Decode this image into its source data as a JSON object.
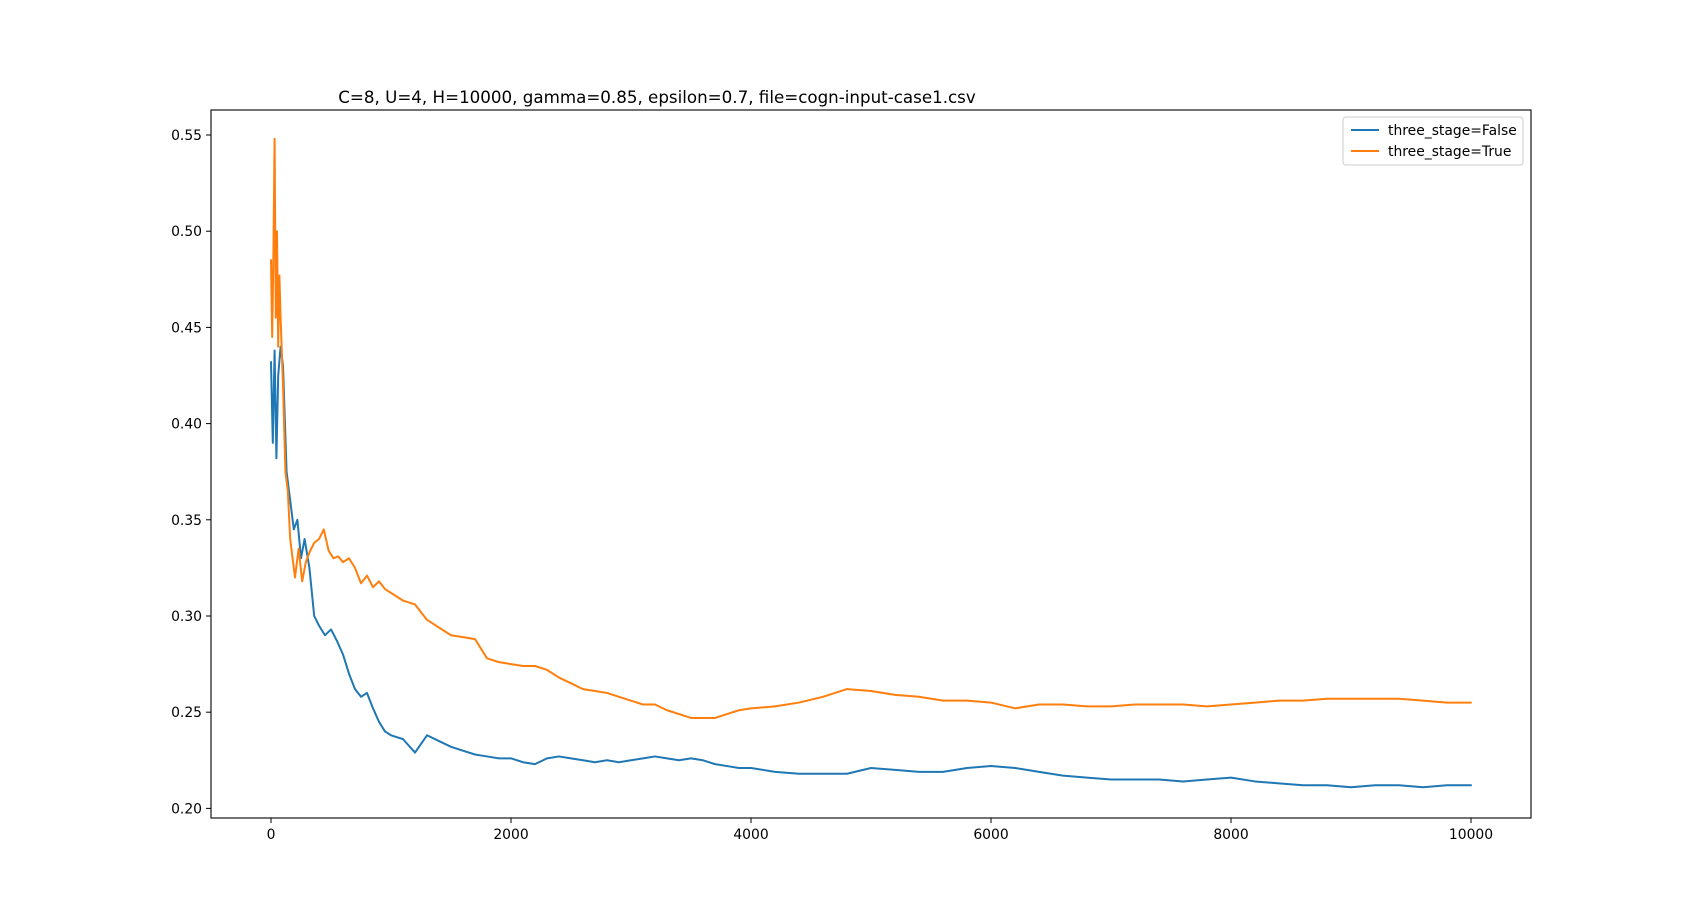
{
  "chart_data": {
    "type": "line",
    "title": "C=8, U=4, H=10000, gamma=0.85, epsilon=0.7, file=cogn-input-case1.csv",
    "xlabel": "",
    "ylabel": "",
    "xlim": [
      -500,
      10500
    ],
    "ylim": [
      0.195,
      0.563
    ],
    "xticks": [
      0,
      2000,
      4000,
      6000,
      8000,
      10000
    ],
    "xtick_labels": [
      "0",
      "2000",
      "4000",
      "6000",
      "8000",
      "10000"
    ],
    "yticks": [
      0.2,
      0.25,
      0.3,
      0.35,
      0.4,
      0.45,
      0.5,
      0.55
    ],
    "ytick_labels": [
      "0.20",
      "0.25",
      "0.30",
      "0.35",
      "0.40",
      "0.45",
      "0.50",
      "0.55"
    ],
    "grid": false,
    "legend_position": "top-right",
    "series": [
      {
        "name": "three_stage=False",
        "color": "#1f77b4",
        "x": [
          0,
          15,
          30,
          45,
          60,
          80,
          100,
          130,
          160,
          190,
          220,
          250,
          280,
          320,
          360,
          400,
          450,
          500,
          550,
          600,
          650,
          700,
          750,
          800,
          850,
          900,
          950,
          1000,
          1100,
          1200,
          1300,
          1400,
          1500,
          1600,
          1700,
          1800,
          1900,
          2000,
          2100,
          2200,
          2300,
          2400,
          2500,
          2600,
          2700,
          2800,
          2900,
          3000,
          3100,
          3200,
          3300,
          3400,
          3500,
          3600,
          3700,
          3800,
          3900,
          4000,
          4200,
          4400,
          4600,
          4800,
          5000,
          5200,
          5400,
          5600,
          5800,
          6000,
          6200,
          6400,
          6600,
          6800,
          7000,
          7200,
          7400,
          7600,
          7800,
          8000,
          8200,
          8400,
          8600,
          8800,
          9000,
          9200,
          9400,
          9600,
          9800,
          10000
        ],
        "y": [
          0.432,
          0.39,
          0.438,
          0.382,
          0.425,
          0.44,
          0.43,
          0.375,
          0.36,
          0.345,
          0.35,
          0.33,
          0.34,
          0.325,
          0.3,
          0.295,
          0.29,
          0.293,
          0.287,
          0.28,
          0.27,
          0.262,
          0.258,
          0.26,
          0.252,
          0.245,
          0.24,
          0.238,
          0.236,
          0.229,
          0.238,
          0.235,
          0.232,
          0.23,
          0.228,
          0.227,
          0.226,
          0.226,
          0.224,
          0.223,
          0.226,
          0.227,
          0.226,
          0.225,
          0.224,
          0.225,
          0.224,
          0.225,
          0.226,
          0.227,
          0.226,
          0.225,
          0.226,
          0.225,
          0.223,
          0.222,
          0.221,
          0.221,
          0.219,
          0.218,
          0.218,
          0.218,
          0.221,
          0.22,
          0.219,
          0.219,
          0.221,
          0.222,
          0.221,
          0.219,
          0.217,
          0.216,
          0.215,
          0.215,
          0.215,
          0.214,
          0.215,
          0.216,
          0.214,
          0.213,
          0.212,
          0.212,
          0.211,
          0.212,
          0.212,
          0.211,
          0.212,
          0.212
        ]
      },
      {
        "name": "three_stage=True",
        "color": "#ff7f0e",
        "x": [
          0,
          10,
          20,
          30,
          40,
          50,
          60,
          70,
          80,
          100,
          120,
          140,
          160,
          180,
          200,
          230,
          260,
          290,
          320,
          360,
          400,
          440,
          480,
          520,
          560,
          600,
          650,
          700,
          750,
          800,
          850,
          900,
          950,
          1000,
          1100,
          1200,
          1300,
          1400,
          1500,
          1600,
          1700,
          1800,
          1900,
          2000,
          2100,
          2200,
          2300,
          2400,
          2500,
          2600,
          2700,
          2800,
          2900,
          3000,
          3100,
          3200,
          3300,
          3400,
          3500,
          3600,
          3700,
          3800,
          3900,
          4000,
          4200,
          4400,
          4600,
          4800,
          5000,
          5200,
          5400,
          5600,
          5800,
          6000,
          6200,
          6400,
          6600,
          6800,
          7000,
          7200,
          7400,
          7600,
          7800,
          8000,
          8200,
          8400,
          8600,
          8800,
          9000,
          9200,
          9400,
          9600,
          9800,
          10000
        ],
        "y": [
          0.485,
          0.445,
          0.488,
          0.548,
          0.455,
          0.5,
          0.44,
          0.477,
          0.455,
          0.42,
          0.375,
          0.365,
          0.34,
          0.33,
          0.32,
          0.335,
          0.318,
          0.328,
          0.333,
          0.338,
          0.34,
          0.345,
          0.334,
          0.33,
          0.331,
          0.328,
          0.33,
          0.325,
          0.317,
          0.321,
          0.315,
          0.318,
          0.314,
          0.312,
          0.308,
          0.306,
          0.298,
          0.294,
          0.29,
          0.289,
          0.288,
          0.278,
          0.276,
          0.275,
          0.274,
          0.274,
          0.272,
          0.268,
          0.265,
          0.262,
          0.261,
          0.26,
          0.258,
          0.256,
          0.254,
          0.254,
          0.251,
          0.249,
          0.247,
          0.247,
          0.247,
          0.249,
          0.251,
          0.252,
          0.253,
          0.255,
          0.258,
          0.262,
          0.261,
          0.259,
          0.258,
          0.256,
          0.256,
          0.255,
          0.252,
          0.254,
          0.254,
          0.253,
          0.253,
          0.254,
          0.254,
          0.254,
          0.253,
          0.254,
          0.255,
          0.256,
          0.256,
          0.257,
          0.257,
          0.257,
          0.257,
          0.256,
          0.255,
          0.255
        ]
      }
    ]
  }
}
